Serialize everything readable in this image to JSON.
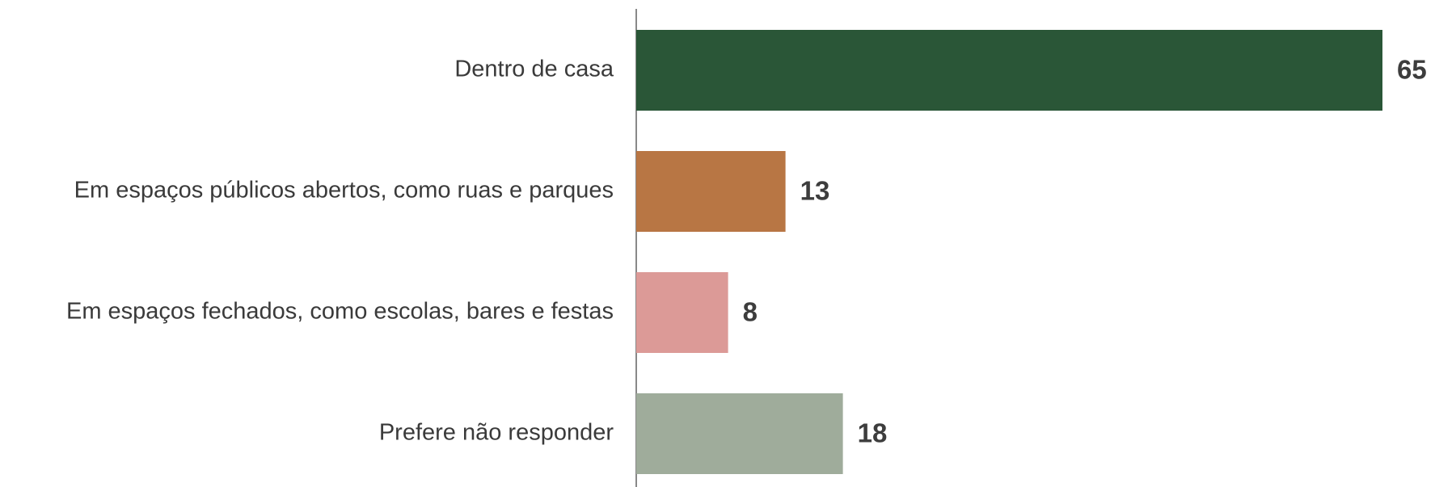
{
  "chart_data": {
    "type": "bar",
    "orientation": "horizontal",
    "categories": [
      "Dentro de casa",
      "Em espaços públicos abertos, como ruas e parques",
      "Em espaços fechados, como escolas, bares e festas",
      "Prefere não responder"
    ],
    "values": [
      65,
      13,
      8,
      18
    ],
    "colors": [
      "#2a5637",
      "#b87644",
      "#dc9a97",
      "#9fac9b"
    ]
  }
}
